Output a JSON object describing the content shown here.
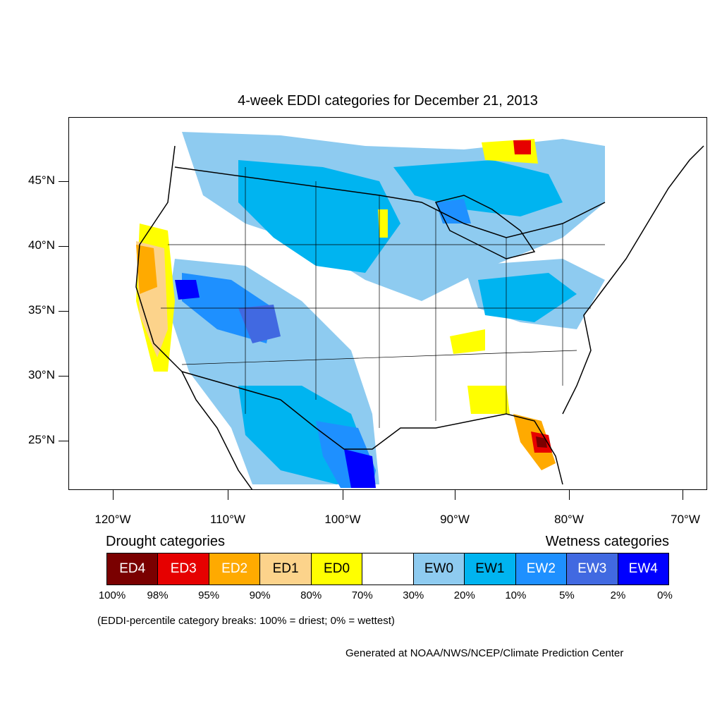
{
  "title": "4-week EDDI categories for December 21, 2013",
  "lat_labels": [
    "45°N",
    "40°N",
    "35°N",
    "30°N",
    "25°N"
  ],
  "lon_labels": [
    "120°W",
    "110°W",
    "100°W",
    "90°W",
    "80°W",
    "70°W"
  ],
  "legend": {
    "drought_heading": "Drought categories",
    "wetness_heading": "Wetness categories",
    "categories": [
      {
        "label": "ED4",
        "color": "#7a0000",
        "text_color": "#ffffff"
      },
      {
        "label": "ED3",
        "color": "#e60000",
        "text_color": "#ffffff"
      },
      {
        "label": "ED2",
        "color": "#ffaa00",
        "text_color": "#ffffff"
      },
      {
        "label": "ED1",
        "color": "#fcd38b",
        "text_color": "#000000"
      },
      {
        "label": "ED0",
        "color": "#ffff00",
        "text_color": "#000000"
      },
      {
        "label": "",
        "color": "#ffffff",
        "text_color": "#000000"
      },
      {
        "label": "EW0",
        "color": "#8ecbf0",
        "text_color": "#000000"
      },
      {
        "label": "EW1",
        "color": "#00b4f0",
        "text_color": "#000000"
      },
      {
        "label": "EW2",
        "color": "#1e90ff",
        "text_color": "#ffffff"
      },
      {
        "label": "EW3",
        "color": "#4169e1",
        "text_color": "#ffffff"
      },
      {
        "label": "EW4",
        "color": "#0000ff",
        "text_color": "#ffffff"
      }
    ],
    "breaks": [
      "100%",
      "98%",
      "95%",
      "90%",
      "80%",
      "70%",
      "30%",
      "20%",
      "10%",
      "5%",
      "2%",
      "0%"
    ]
  },
  "note": "(EDDI-percentile category breaks: 100% = driest; 0% = wettest)",
  "credit": "Generated at NOAA/NWS/NCEP/Climate Prediction Center"
}
